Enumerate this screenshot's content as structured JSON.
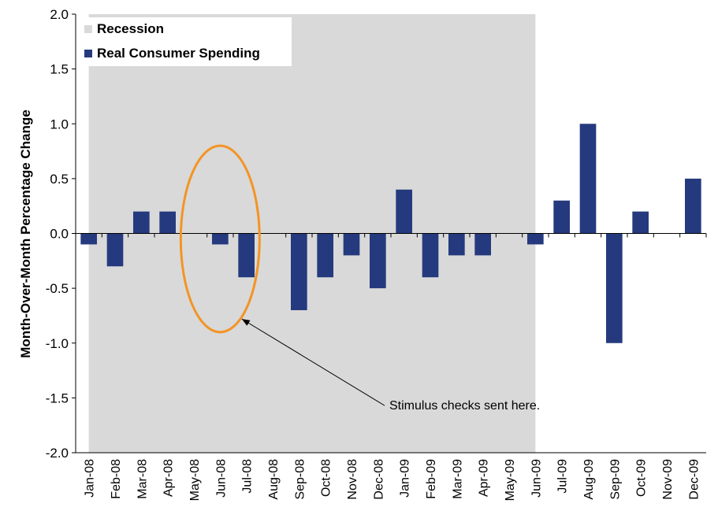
{
  "chart_data": {
    "type": "bar",
    "title": "",
    "xlabel": "",
    "ylabel": "Month-Over-Month Percentage Change",
    "ylim": [
      -2.0,
      2.0
    ],
    "yticks": [
      "2.0",
      "1.5",
      "1.0",
      "0.5",
      "0.0",
      "-0.5",
      "-1.0",
      "-1.5",
      "-2.0"
    ],
    "categories": [
      "Jan-08",
      "Feb-08",
      "Mar-08",
      "Apr-08",
      "May-08",
      "Jun-08",
      "Jul-08",
      "Aug-08",
      "Sep-08",
      "Oct-08",
      "Nov-08",
      "Dec-08",
      "Jan-09",
      "Feb-09",
      "Mar-09",
      "Apr-09",
      "May-09",
      "Jun-09",
      "Jul-09",
      "Aug-09",
      "Sep-09",
      "Oct-09",
      "Nov-09",
      "Dec-09"
    ],
    "series": [
      {
        "name": "Real Consumer Spending",
        "color": "#253a7e",
        "values": [
          -0.1,
          -0.3,
          0.2,
          0.2,
          0.0,
          -0.1,
          -0.4,
          0.0,
          -0.7,
          -0.4,
          -0.2,
          -0.5,
          0.4,
          -0.4,
          -0.2,
          -0.2,
          0.0,
          -0.1,
          0.3,
          1.0,
          -1.0,
          0.2,
          0.0,
          0.5
        ]
      }
    ],
    "recession": {
      "name": "Recession",
      "color": "#d9d9d9",
      "start": "Jan-08",
      "end": "Jun-09"
    },
    "legend": {
      "placement": "top-left",
      "items": [
        "Recession",
        "Real Consumer Spending"
      ]
    },
    "highlight": {
      "color": "#f39425",
      "from": "May-08",
      "to": "Jul-08"
    },
    "annotation": {
      "text": "Stimulus checks sent here.",
      "points_to": "Jul-08"
    },
    "grid": false
  }
}
